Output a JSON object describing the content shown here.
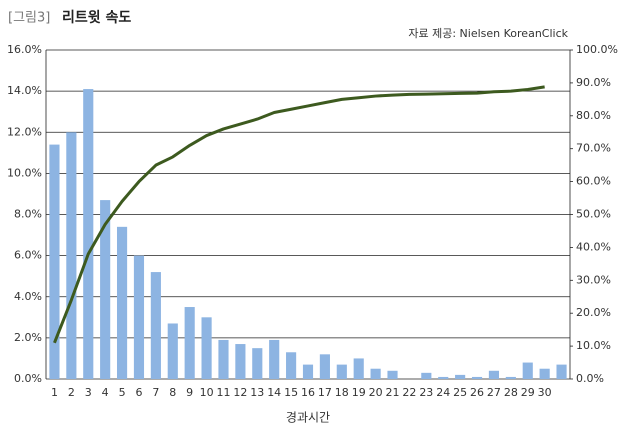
{
  "chart_data": {
    "type": "combo",
    "figure_label": "[그림3]",
    "title": "리트윗 속도",
    "source": "자료 제공: Nielsen KoreanClick",
    "xlabel": "경과시간",
    "categories": [
      "1",
      "2",
      "3",
      "4",
      "5",
      "6",
      "7",
      "8",
      "9",
      "10",
      "11",
      "12",
      "13",
      "14",
      "15",
      "16",
      "17",
      "18",
      "19",
      "20",
      "21",
      "22",
      "23",
      "24",
      "25",
      "26",
      "27",
      "28",
      "29",
      "30",
      null
    ],
    "series": [
      {
        "type": "bar",
        "color": "#8db4e2",
        "values": [
          11.4,
          12.0,
          14.1,
          8.7,
          7.4,
          6.0,
          5.2,
          2.7,
          3.5,
          3.0,
          1.9,
          1.7,
          1.5,
          1.9,
          1.3,
          0.7,
          1.2,
          0.7,
          1.0,
          0.5,
          0.4,
          0.0,
          0.3,
          0.1,
          0.2,
          0.1,
          0.4,
          0.1,
          0.8,
          0.5,
          0.7
        ]
      },
      {
        "type": "line",
        "axis": "y2",
        "color": "#3d5a1f",
        "values": [
          11,
          24,
          38,
          47,
          54,
          60,
          65,
          67.5,
          71,
          74,
          76,
          77.5,
          79,
          81,
          82,
          83,
          84,
          85,
          85.5,
          86,
          86.3,
          86.5,
          86.6,
          86.7,
          86.8,
          86.9,
          87.3,
          87.5,
          88,
          88.8,
          null
        ]
      }
    ],
    "ylim": [
      0,
      16
    ],
    "yticks": [
      {
        "value": 0,
        "label": "0.0%"
      },
      {
        "value": 2,
        "label": "2.0%"
      },
      {
        "value": 4,
        "label": "4.0%"
      },
      {
        "value": 6,
        "label": "6.0%"
      },
      {
        "value": 8,
        "label": "8.0%"
      },
      {
        "value": 10,
        "label": "10.0%"
      },
      {
        "value": 12,
        "label": "12.0%"
      },
      {
        "value": 14,
        "label": "14.0%"
      },
      {
        "value": 16,
        "label": "16.0%"
      }
    ],
    "y2lim": [
      0,
      100
    ],
    "y2ticks": [
      {
        "value": 0,
        "label": "0.0%"
      },
      {
        "value": 10,
        "label": "10.0%"
      },
      {
        "value": 20,
        "label": "20.0%"
      },
      {
        "value": 30,
        "label": "30.0%"
      },
      {
        "value": 40,
        "label": "40.0%"
      },
      {
        "value": 50,
        "label": "50.0%"
      },
      {
        "value": 60,
        "label": "60.0%"
      },
      {
        "value": 70,
        "label": "70.0%"
      },
      {
        "value": 80,
        "label": "80.0%"
      },
      {
        "value": 90,
        "label": "90.0%"
      },
      {
        "value": 100,
        "label": "100.0%"
      }
    ],
    "grid": true
  }
}
